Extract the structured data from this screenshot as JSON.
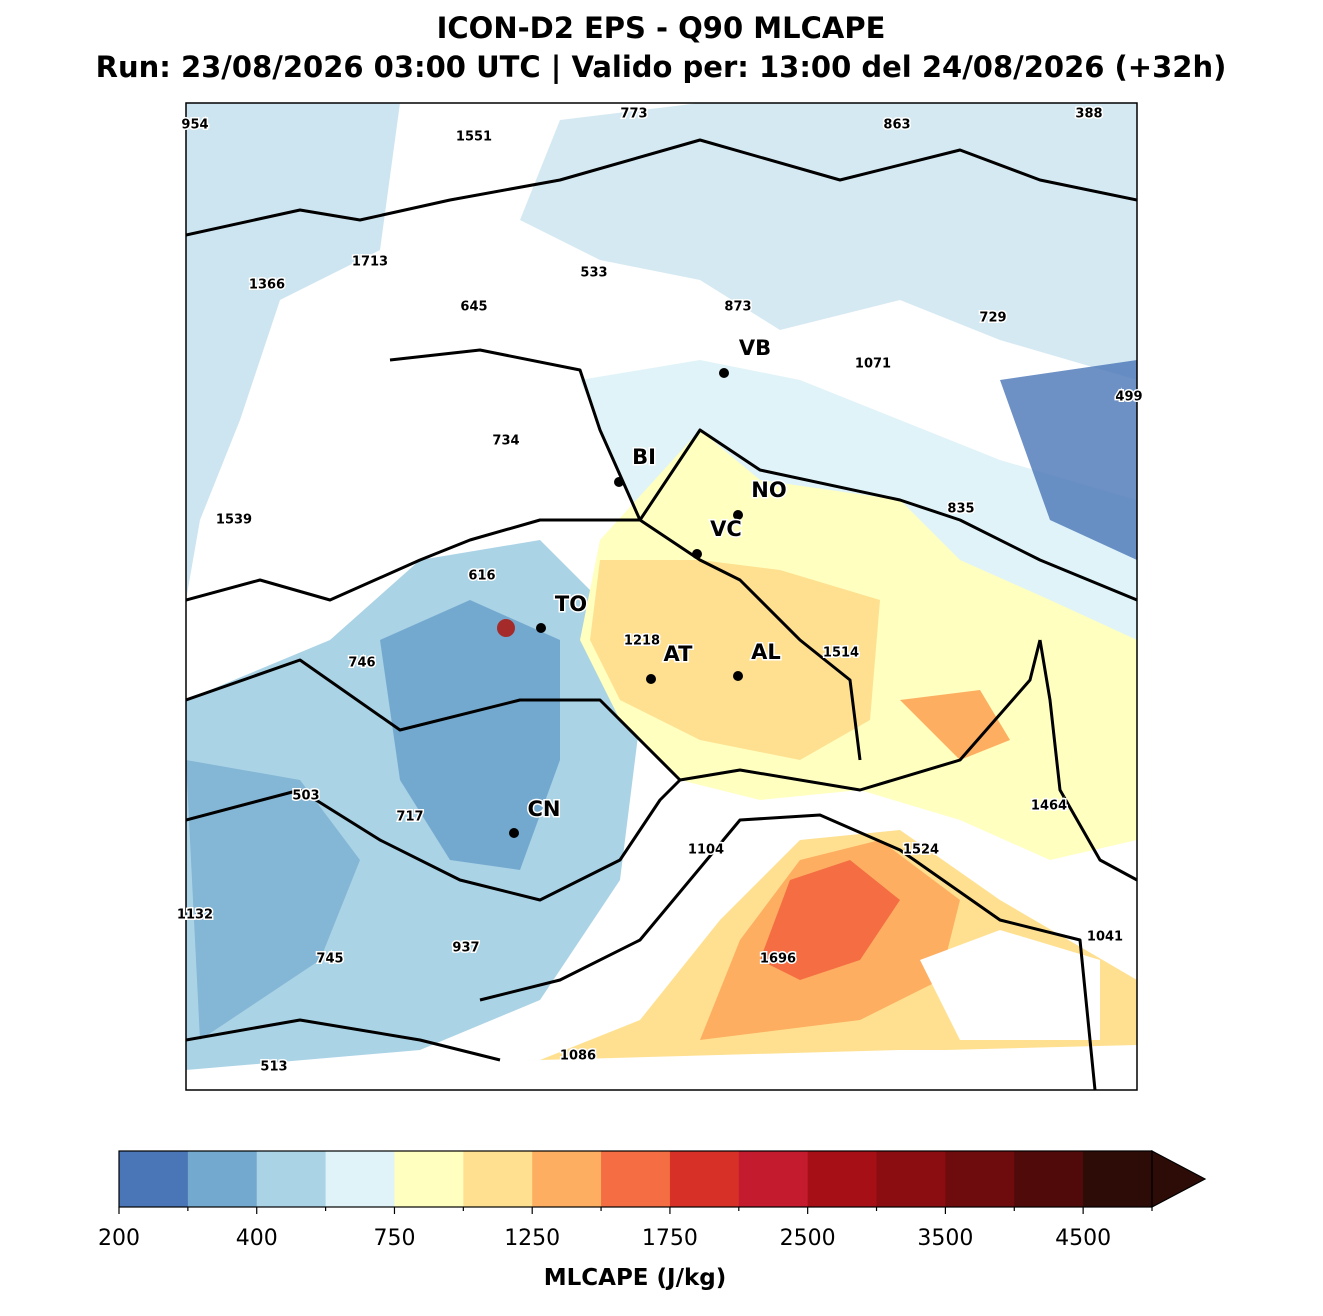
{
  "title": "ICON-D2 EPS - Q90 MLCAPE",
  "subtitle": "Run: 23/08/2026 03:00 UTC | Valido per: 13:00 del 24/08/2026 (+32h)",
  "map_values": [
    954,
    1551,
    773,
    863,
    388,
    1713,
    533,
    1366,
    645,
    873,
    729,
    1071,
    499,
    734,
    835,
    1539,
    616,
    1218,
    1514,
    746,
    503,
    1464,
    717,
    1104,
    1524,
    1132,
    1041,
    937,
    745,
    1696,
    1086,
    513
  ],
  "cities": [
    "VB",
    "BI",
    "NO",
    "VC",
    "TO",
    "AT",
    "AL",
    "CN"
  ],
  "colorbar": {
    "label": "MLCAPE (J/kg)",
    "colors": [
      "#4a76b7",
      "#74a9cf",
      "#abd3e6",
      "#e0f3f8",
      "#ffffbf",
      "#fee090",
      "#fdae61",
      "#f46d43",
      "#d73027",
      "#c51b2e",
      "#a50f15",
      "#8b0d12",
      "#6e0b0d",
      "#4f0a09",
      "#2d0c08"
    ],
    "ticks": [
      200,
      400,
      750,
      1250,
      1750,
      2500,
      3500,
      4500
    ]
  }
}
